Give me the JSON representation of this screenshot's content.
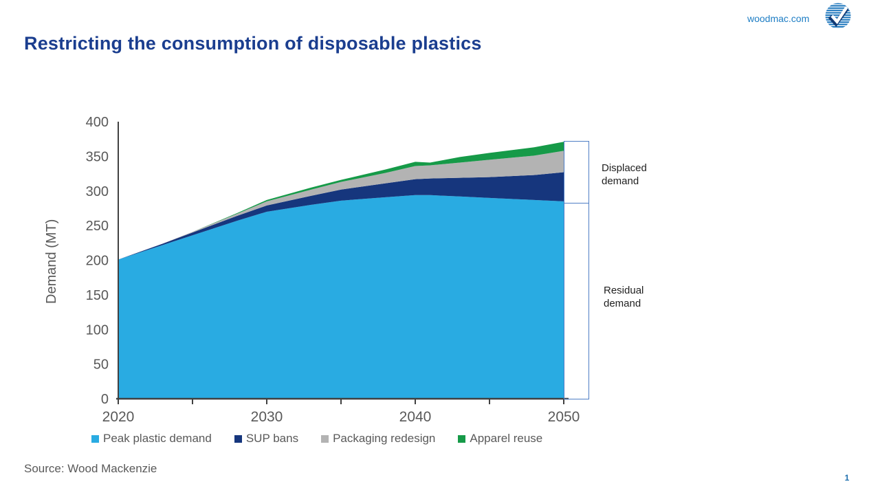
{
  "header": {
    "title": "Restricting the consumption of disposable plastics",
    "website": "woodmac.com"
  },
  "logo": {
    "icon": "woodmac-striped-globe-check",
    "color": "#1b75bc"
  },
  "annotations": {
    "displaced": "Displaced\ndemand",
    "residual": "Residual\ndemand"
  },
  "footer": {
    "source": "Source: Wood Mackenzie",
    "page_number": "1"
  },
  "colors": {
    "title": "#1b3e8f",
    "axis": "#404040",
    "tick_text": "#595959",
    "bracket": "#4d7dc5"
  },
  "chart_data": {
    "type": "area",
    "stacked": true,
    "title": "",
    "xlabel": "",
    "ylabel": "Demand (MT)",
    "legend_position": "bottom",
    "grid": false,
    "x": [
      2020,
      2023,
      2025,
      2028,
      2030,
      2033,
      2035,
      2038,
      2040,
      2041,
      2043,
      2045,
      2048,
      2050
    ],
    "series": [
      {
        "name": "Peak plastic demand",
        "color": "#29abe2",
        "values": [
          201,
          222,
          236,
          257,
          270,
          280,
          286,
          291,
          294,
          294,
          292,
          290,
          287,
          285
        ]
      },
      {
        "name": "SUP bans",
        "color": "#16367d",
        "values": [
          0,
          2,
          4,
          7,
          9,
          13,
          16,
          20,
          23,
          24,
          27,
          30,
          36,
          42
        ]
      },
      {
        "name": "Packaging redesign",
        "color": "#b3b3b3",
        "values": [
          0,
          0,
          1,
          3,
          6,
          9,
          11,
          15,
          19,
          19,
          22,
          25,
          28,
          31
        ]
      },
      {
        "name": "Apparel reuse",
        "color": "#169a48",
        "values": [
          0,
          0,
          0,
          1,
          2,
          3,
          3,
          5,
          6,
          4,
          8,
          10,
          12,
          13
        ]
      }
    ],
    "x_axis": {
      "range": [
        2020,
        2050
      ],
      "tick_interval": 5,
      "labeled_ticks": [
        2020,
        2030,
        2040,
        2050
      ]
    },
    "y_axis": {
      "range": [
        0,
        400
      ],
      "tick_interval": 50
    },
    "totals_by_year_note": {
      "2020": 201,
      "2030": 287,
      "2040": 342,
      "2050": 371,
      "residual_demand_2050": 285,
      "displaced_demand_2050": 86
    }
  }
}
